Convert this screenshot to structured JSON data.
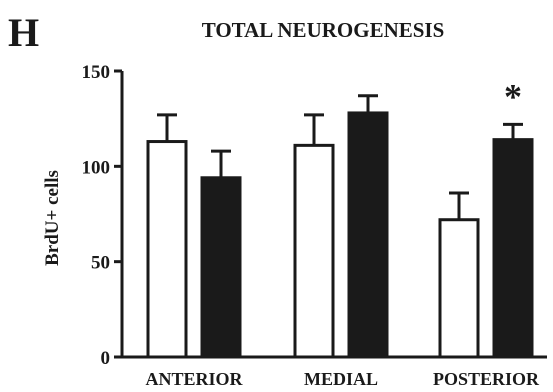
{
  "panel_label": "H",
  "chart_data": {
    "type": "bar",
    "title": "TOTAL NEUROGENESIS",
    "ylabel": "BrdU+ cells",
    "xlabel": "",
    "ylim": [
      0,
      150
    ],
    "yticks": [
      0,
      50,
      100,
      150
    ],
    "categories": [
      "ANTERIOR",
      "MEDIAL",
      "POSTERIOR"
    ],
    "series": [
      {
        "values": [
          113,
          111,
          72
        ],
        "errors": [
          14,
          16,
          14
        ],
        "color": "#ffffff"
      },
      {
        "values": [
          94,
          128,
          114
        ],
        "errors": [
          14,
          9,
          8
        ],
        "color": "#1a1a1a"
      }
    ],
    "annotations": [
      {
        "category": "POSTERIOR",
        "series": 1,
        "text": "*"
      }
    ]
  }
}
